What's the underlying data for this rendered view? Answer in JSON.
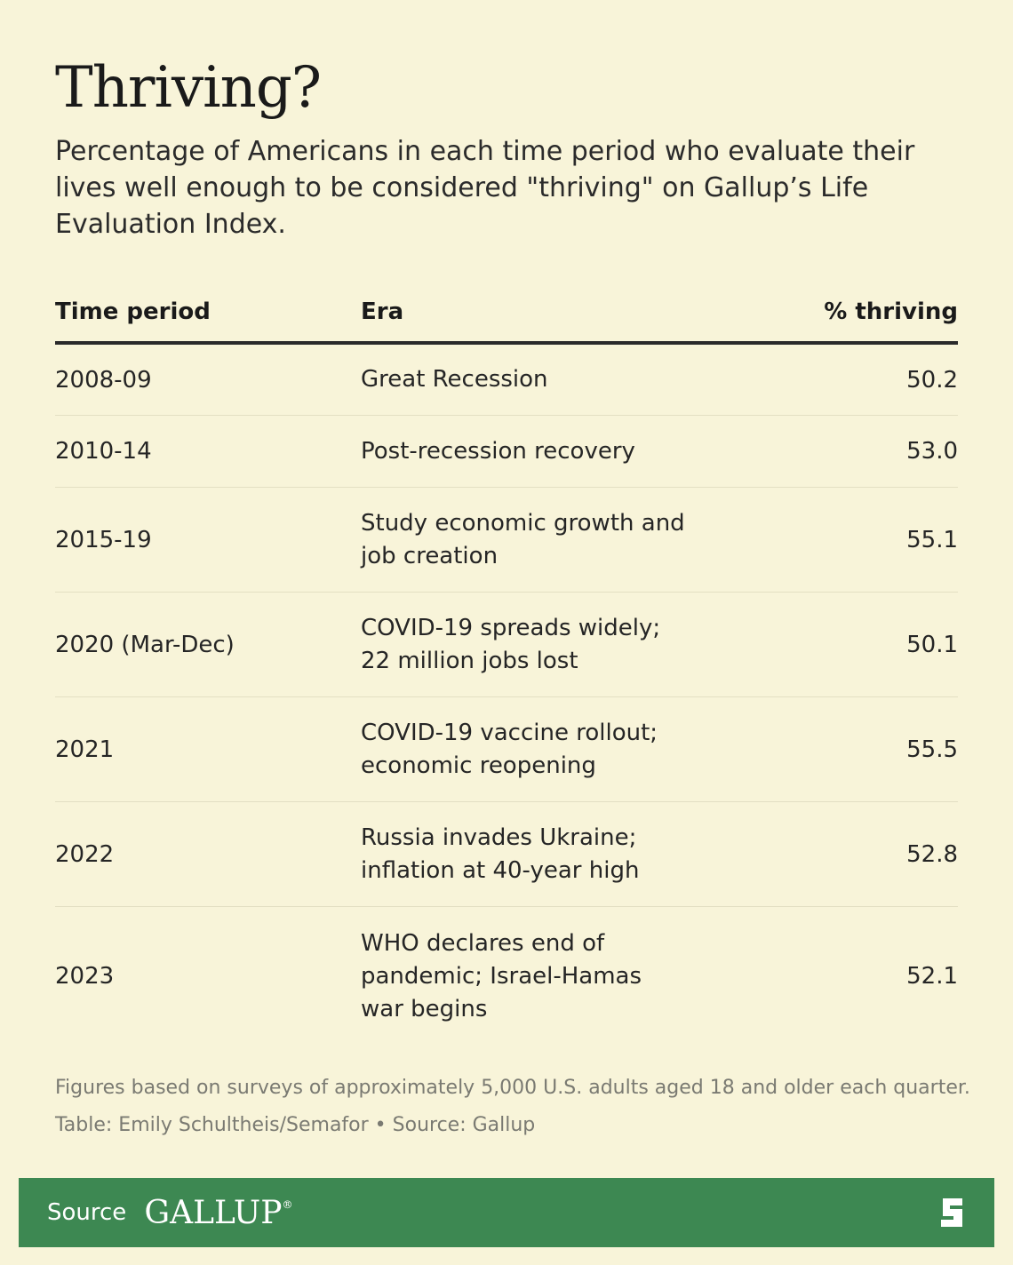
{
  "title": "Thriving?",
  "subtitle": "Percentage of Americans in each time period who evaluate their lives well enough to be considered \"thriving\" on Gallup’s Life Evaluation Index.",
  "chart_data": {
    "type": "table",
    "title": "Thriving?",
    "columns": [
      "Time period",
      "Era",
      "% thriving"
    ],
    "rows": [
      {
        "period": "2008-09",
        "era": [
          "Great Recession"
        ],
        "value": "50.2"
      },
      {
        "period": "2010-14",
        "era": [
          "Post-recession recovery"
        ],
        "value": "53.0"
      },
      {
        "period": "2015-19",
        "era": [
          "Study economic growth and",
          "job creation"
        ],
        "value": "55.1"
      },
      {
        "period": "2020 (Mar-Dec)",
        "era": [
          "COVID-19 spreads widely;",
          "22 million jobs lost"
        ],
        "value": "50.1"
      },
      {
        "period": "2021",
        "era": [
          "COVID-19 vaccine rollout;",
          "economic reopening"
        ],
        "value": "55.5"
      },
      {
        "period": "2022",
        "era": [
          "Russia invades Ukraine;",
          "inflation at 40-year high"
        ],
        "value": "52.8"
      },
      {
        "period": "2023",
        "era": [
          "WHO declares end of",
          "pandemic; Israel-Hamas",
          "war begins"
        ],
        "value": "52.1"
      }
    ]
  },
  "note": "Figures based on surveys of approximately 5,000 U.S. adults aged 18 and older each quarter.",
  "credit": "Table: Emily Schultheis/Semafor • Source: Gallup",
  "footer": {
    "source_label": "Source",
    "brand": "GALLUP",
    "brand_mark": "®",
    "logo_icon": "semafor-s-logo-icon"
  },
  "colors": {
    "background": "#f8f4d9",
    "footer_green": "#3d8852",
    "header_rule": "#2a2a2a",
    "row_rule": "#e3dfc3",
    "muted_text": "#7a7a72"
  }
}
